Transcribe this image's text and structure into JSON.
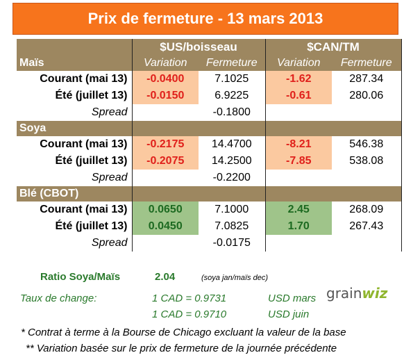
{
  "title": "Prix de fermeture - 13 mars 2013",
  "headers": {
    "usd": "$US/boisseau",
    "cad": "$CAN/TM",
    "variation": "Variation",
    "fermeture": "Fermeture"
  },
  "sections": [
    {
      "name": "Maïs",
      "rows": [
        {
          "label": "Courant (mai 13)",
          "usd_var": "-0.0400",
          "usd_close": "7.1025",
          "cad_var": "-1.62",
          "cad_close": "287.34"
        },
        {
          "label": "Été (juillet 13)",
          "usd_var": "-0.0150",
          "usd_close": "6.9225",
          "cad_var": "-0.61",
          "cad_close": "280.06"
        }
      ],
      "spread_label": "Spread",
      "spread": "-0.1800"
    },
    {
      "name": "Soya",
      "rows": [
        {
          "label": "Courant (mai 13)",
          "usd_var": "-0.2175",
          "usd_close": "14.4700",
          "cad_var": "-8.21",
          "cad_close": "546.38"
        },
        {
          "label": "Été (juillet 13)",
          "usd_var": "-0.2075",
          "usd_close": "14.2500",
          "cad_var": "-7.85",
          "cad_close": "538.08"
        }
      ],
      "spread_label": "Spread",
      "spread": "-0.2200"
    },
    {
      "name": "Blé (CBOT)",
      "rows": [
        {
          "label": "Courant (mai 13)",
          "usd_var": "0.0650",
          "usd_close": "7.1000",
          "cad_var": "2.45",
          "cad_close": "268.09"
        },
        {
          "label": "Été (juillet 13)",
          "usd_var": "0.0450",
          "usd_close": "7.0825",
          "cad_var": "1.70",
          "cad_close": "267.43"
        }
      ],
      "spread_label": "Spread",
      "spread": "-0.0175"
    }
  ],
  "ratio": {
    "label": "Ratio Soya/Maïs",
    "value": "2.04",
    "note": "(soya jan/maïs dec)"
  },
  "exchange": {
    "label": "Taux de change:",
    "rate1": "1 CAD =  0.9731",
    "unit1": "USD mars",
    "rate2": "1 CAD =  0.9710",
    "unit2": "USD juin"
  },
  "logo": {
    "text": "grainwiz"
  },
  "notes": [
    "* Contrat à terme à la Bourse de Chicago excluant la valeur de la base",
    "** Variation basée sur le prix de fermeture de la journée précédente"
  ],
  "colors": {
    "title_bg": "#f7741c",
    "header_bg": "#9d8760",
    "negative_bg": "#fbc9a0",
    "positive_bg": "#9fc48a"
  }
}
